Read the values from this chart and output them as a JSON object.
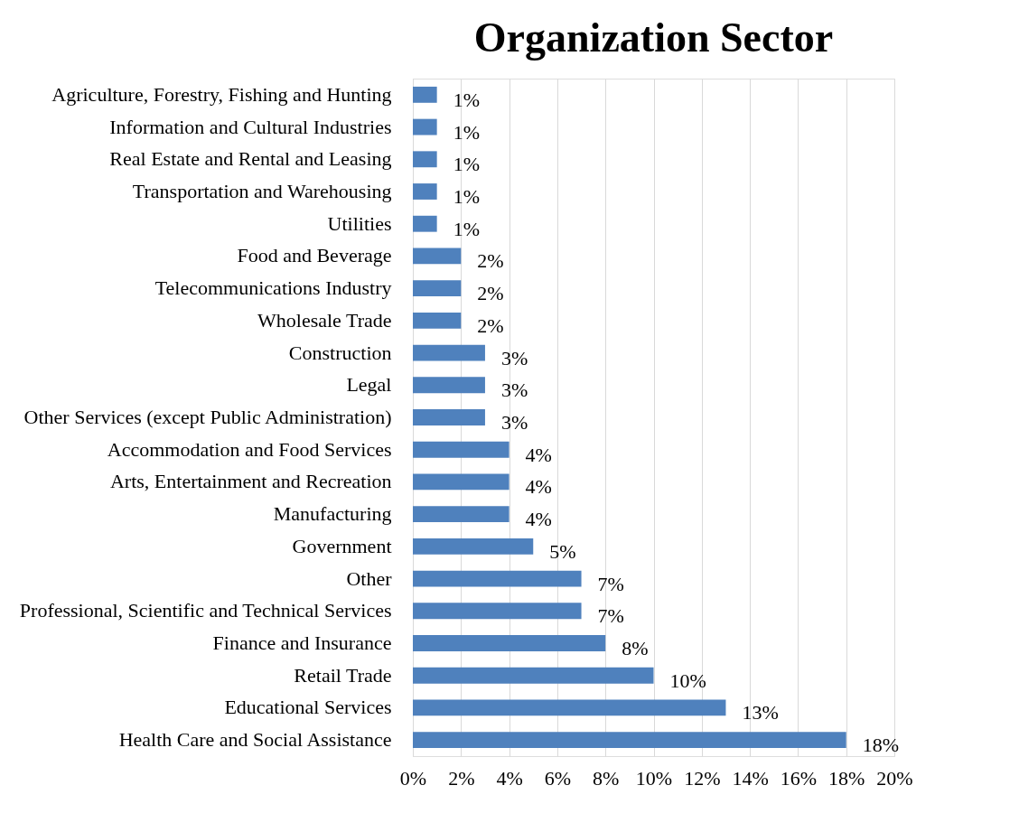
{
  "chart_data": {
    "type": "bar",
    "orientation": "horizontal",
    "title": "Organization Sector",
    "categories": [
      "Agriculture, Forestry, Fishing and Hunting",
      "Information and Cultural Industries",
      "Real Estate and Rental and Leasing",
      "Transportation and Warehousing",
      "Utilities",
      "Food and Beverage",
      "Telecommunications Industry",
      "Wholesale Trade",
      "Construction",
      "Legal",
      "Other Services (except Public Administration)",
      "Accommodation and Food Services",
      "Arts, Entertainment and Recreation",
      "Manufacturing",
      "Government",
      "Other",
      "Professional, Scientific and Technical Services",
      "Finance and Insurance",
      "Retail Trade",
      "Educational Services",
      "Health Care and Social Assistance"
    ],
    "values": [
      1,
      1,
      1,
      1,
      1,
      2,
      2,
      2,
      3,
      3,
      3,
      4,
      4,
      4,
      5,
      7,
      7,
      8,
      10,
      13,
      18
    ],
    "value_labels": [
      "1%",
      "1%",
      "1%",
      "1%",
      "1%",
      "2%",
      "2%",
      "2%",
      "3%",
      "3%",
      "3%",
      "4%",
      "4%",
      "4%",
      "5%",
      "7%",
      "7%",
      "8%",
      "10%",
      "13%",
      "18%"
    ],
    "color": "#4f81bd",
    "xlim": [
      0,
      20
    ],
    "xticks": [
      {
        "value": 0,
        "label": "0%"
      },
      {
        "value": 2,
        "label": "2%"
      },
      {
        "value": 4,
        "label": "4%"
      },
      {
        "value": 6,
        "label": "6%"
      },
      {
        "value": 8,
        "label": "8%"
      },
      {
        "value": 10,
        "label": "10%"
      },
      {
        "value": 12,
        "label": "12%"
      },
      {
        "value": 14,
        "label": "14%"
      },
      {
        "value": 16,
        "label": "16%"
      },
      {
        "value": 18,
        "label": "18%"
      },
      {
        "value": 20,
        "label": "20%"
      }
    ],
    "grid": "x"
  }
}
